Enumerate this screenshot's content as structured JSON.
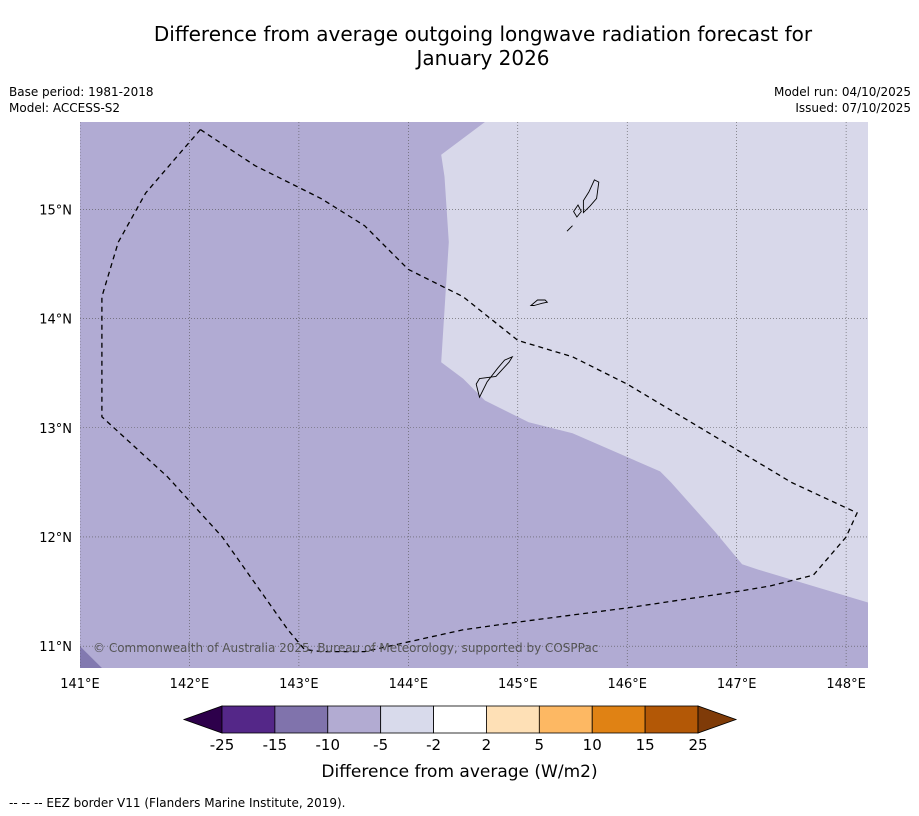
{
  "title_line1": "Difference from average outgoing longwave radiation forecast for",
  "title_line2": "January 2026",
  "meta_left": {
    "base_period": "Base period: 1981-2018",
    "model": "Model: ACCESS-S2"
  },
  "meta_right": {
    "model_run": "Model run: 04/10/2025",
    "issued": "Issued: 07/10/2025"
  },
  "map": {
    "lon_range": [
      141.0,
      148.2
    ],
    "lat_range": [
      10.8,
      15.8
    ],
    "lon_ticks": [
      141,
      142,
      143,
      144,
      145,
      146,
      147,
      148
    ],
    "lon_labels": [
      "141°E",
      "142°E",
      "143°E",
      "144°E",
      "145°E",
      "146°E",
      "147°E",
      "148°E"
    ],
    "lat_ticks": [
      11,
      12,
      13,
      14,
      15
    ],
    "lat_labels": [
      "11°N",
      "12°N",
      "13°N",
      "14°N",
      "15°N"
    ],
    "fill_colors": {
      "base": "#b1abd3",
      "light": "#d8d8ea",
      "corner": "#8279b0"
    },
    "light_region": [
      [
        144.7,
        15.8
      ],
      [
        148.2,
        15.8
      ],
      [
        148.2,
        11.4
      ],
      [
        147.7,
        11.55
      ],
      [
        147.2,
        11.7
      ],
      [
        147.05,
        11.75
      ],
      [
        146.8,
        12.05
      ],
      [
        146.4,
        12.5
      ],
      [
        146.3,
        12.6
      ],
      [
        145.5,
        12.95
      ],
      [
        145.1,
        13.05
      ],
      [
        144.7,
        13.25
      ],
      [
        144.5,
        13.45
      ],
      [
        144.3,
        13.6
      ],
      [
        144.37,
        14.7
      ],
      [
        144.33,
        15.3
      ],
      [
        144.3,
        15.5
      ]
    ],
    "corner_region": [
      [
        141.0,
        10.8
      ],
      [
        141.2,
        10.8
      ],
      [
        141.0,
        11.0
      ]
    ],
    "eez_border": [
      [
        142.1,
        15.73
      ],
      [
        141.9,
        15.5
      ],
      [
        141.6,
        15.15
      ],
      [
        141.35,
        14.7
      ],
      [
        141.2,
        14.2
      ],
      [
        141.2,
        13.9
      ],
      [
        141.2,
        13.5
      ],
      [
        141.2,
        13.1
      ],
      [
        141.8,
        12.55
      ],
      [
        142.3,
        12.0
      ],
      [
        142.9,
        11.15
      ],
      [
        143.05,
        10.97
      ],
      [
        143.2,
        10.95
      ],
      [
        143.6,
        10.95
      ],
      [
        144.5,
        11.15
      ],
      [
        145.0,
        11.22
      ],
      [
        146.0,
        11.35
      ],
      [
        147.0,
        11.5
      ],
      [
        147.3,
        11.55
      ],
      [
        147.7,
        11.65
      ],
      [
        148.0,
        12.0
      ],
      [
        148.1,
        12.22
      ],
      [
        147.5,
        12.5
      ],
      [
        147.0,
        12.8
      ],
      [
        146.5,
        13.1
      ],
      [
        146.0,
        13.4
      ],
      [
        145.5,
        13.65
      ],
      [
        145.0,
        13.8
      ],
      [
        144.5,
        14.2
      ],
      [
        144.2,
        14.35
      ],
      [
        144.0,
        14.45
      ],
      [
        143.6,
        14.85
      ],
      [
        143.2,
        15.1
      ],
      [
        142.6,
        15.4
      ],
      [
        142.1,
        15.73
      ]
    ],
    "islands": [
      [
        [
          144.65,
          13.45
        ],
        [
          144.8,
          13.47
        ],
        [
          144.92,
          13.6
        ],
        [
          144.95,
          13.65
        ],
        [
          144.88,
          13.62
        ],
        [
          144.82,
          13.55
        ],
        [
          144.72,
          13.42
        ],
        [
          144.65,
          13.28
        ],
        [
          144.62,
          13.4
        ]
      ],
      [
        [
          145.15,
          14.12
        ],
        [
          145.22,
          14.14
        ],
        [
          145.27,
          14.15
        ],
        [
          145.25,
          14.17
        ],
        [
          145.18,
          14.17
        ],
        [
          145.12,
          14.12
        ]
      ],
      [
        [
          145.6,
          14.97
        ],
        [
          145.66,
          15.03
        ],
        [
          145.72,
          15.1
        ],
        [
          145.74,
          15.25
        ],
        [
          145.7,
          15.27
        ],
        [
          145.65,
          15.16
        ],
        [
          145.6,
          15.08
        ]
      ],
      [
        [
          145.54,
          14.93
        ],
        [
          145.58,
          14.98
        ],
        [
          145.55,
          15.04
        ],
        [
          145.51,
          14.98
        ]
      ],
      [
        [
          145.45,
          14.8
        ],
        [
          145.5,
          14.85
        ]
      ]
    ]
  },
  "copyright": "© Commonwealth of Australia 2025, Bureau of Meteorology, supported by COSPPac",
  "colorbar": {
    "colors": [
      "#2d004b",
      "#542788",
      "#8073ac",
      "#b2abd2",
      "#d8daeb",
      "#ffffff",
      "#fee0b6",
      "#fdb863",
      "#e08214",
      "#b35806",
      "#7f3b08"
    ],
    "tick_labels": [
      "-25",
      "-15",
      "-10",
      "-5",
      "-2",
      "2",
      "5",
      "10",
      "15",
      "25"
    ],
    "label": "Difference from average (W/m2)"
  },
  "footnote": "--  --  -- EEZ border V11 (Flanders Marine Institute, 2019)."
}
